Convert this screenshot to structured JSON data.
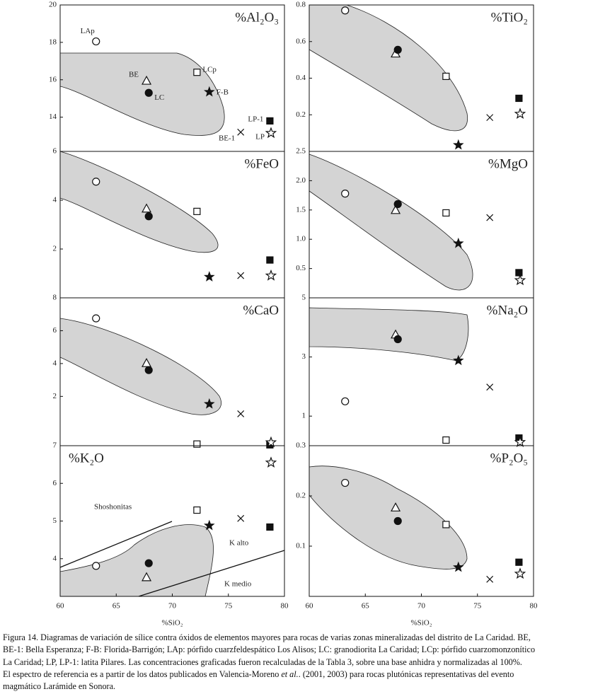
{
  "chart_data": [
    {
      "type": "scatter",
      "label": "%Al₂O₃",
      "label_corner": "upper right",
      "xlim": [
        60,
        80
      ],
      "ylim": [
        12.17,
        20
      ],
      "yticks": [
        14,
        16,
        18,
        20
      ],
      "markers": [
        "open-circle",
        "open-triangle",
        "filled-circle",
        "open-square",
        "filled-star",
        "cross",
        "filled-square",
        "open-star"
      ],
      "point_labels": [
        "LAp",
        "BE",
        "LC",
        "LCp",
        "F-B",
        "BE-1",
        "LP-1",
        "LP"
      ],
      "x": [
        63.2,
        67.7,
        67.9,
        72.2,
        73.3,
        76.1,
        78.7,
        78.8
      ],
      "values": [
        18.05,
        15.95,
        15.3,
        16.4,
        15.35,
        13.2,
        13.8,
        13.15
      ]
    },
    {
      "type": "scatter",
      "label": "%TiO₂",
      "label_corner": "upper right",
      "xlim": [
        60,
        80
      ],
      "ylim": [
        0,
        0.8
      ],
      "yticks": [
        0.2,
        0.4,
        0.6,
        0.8
      ],
      "markers": [
        "open-circle",
        "open-triangle",
        "filled-circle",
        "open-square",
        "filled-star",
        "cross",
        "filled-square",
        "open-star"
      ],
      "x": [
        63.2,
        67.7,
        67.9,
        72.2,
        73.3,
        76.1,
        78.7,
        78.8
      ],
      "values": [
        0.77,
        0.535,
        0.555,
        0.41,
        0.035,
        0.185,
        0.29,
        0.205
      ]
    },
    {
      "type": "scatter",
      "label": "%FeO",
      "label_corner": "upper right",
      "xlim": [
        60,
        80
      ],
      "ylim": [
        0,
        6
      ],
      "yticks": [
        2,
        4,
        6
      ],
      "markers": [
        "open-circle",
        "open-triangle",
        "filled-circle",
        "open-square",
        "filled-star",
        "cross",
        "filled-square",
        "open-star"
      ],
      "x": [
        63.2,
        67.7,
        67.9,
        72.2,
        73.3,
        76.1,
        78.7,
        78.8
      ],
      "values": [
        4.76,
        3.66,
        3.34,
        3.54,
        0.86,
        0.91,
        1.55,
        0.91
      ]
    },
    {
      "type": "scatter",
      "label": "%MgO",
      "label_corner": "upper right",
      "xlim": [
        60,
        80
      ],
      "ylim": [
        0,
        2.5
      ],
      "yticks": [
        0.5,
        {
          "value": 1,
          "label": "1.0"
        },
        1.5,
        {
          "value": 2,
          "label": "2.0"
        },
        2.5
      ],
      "markers": [
        "open-circle",
        "open-triangle",
        "filled-circle",
        "open-square",
        "filled-star",
        "cross",
        "filled-square",
        "open-star"
      ],
      "x": [
        63.2,
        67.7,
        67.9,
        72.2,
        73.3,
        76.1,
        78.7,
        78.8
      ],
      "values": [
        1.78,
        1.5,
        1.6,
        1.45,
        0.93,
        1.37,
        0.43,
        0.3
      ]
    },
    {
      "type": "scatter",
      "label": "%CaO",
      "label_corner": "upper right",
      "xlim": [
        60,
        80
      ],
      "ylim": [
        -1,
        8
      ],
      "yticks": [
        2,
        4,
        6,
        8
      ],
      "markers": [
        "open-circle",
        "open-triangle",
        "filled-circle",
        "open-square",
        "filled-star",
        "cross",
        "filled-square",
        "open-star"
      ],
      "x": [
        63.2,
        67.7,
        67.9,
        72.2,
        73.3,
        76.1,
        78.7,
        78.8
      ],
      "values": [
        6.75,
        4.03,
        3.6,
        -0.9,
        1.54,
        0.94,
        -0.95,
        -0.8
      ]
    },
    {
      "type": "scatter",
      "label": "%Na₂O",
      "label_corner": "upper right",
      "xlim": [
        60,
        80
      ],
      "ylim": [
        0,
        5
      ],
      "yticks": [
        1,
        3,
        5
      ],
      "markers": [
        "open-circle",
        "open-triangle",
        "filled-circle",
        "open-square",
        "filled-star",
        "cross",
        "filled-square",
        "open-star"
      ],
      "x": [
        63.2,
        67.7,
        67.9,
        72.2,
        73.3,
        76.1,
        78.7,
        78.8
      ],
      "values": [
        1.5,
        3.76,
        3.6,
        0.19,
        2.88,
        1.98,
        0.26,
        0.12
      ]
    },
    {
      "type": "scatter",
      "label": "%K₂O",
      "label_corner": "upper left",
      "xlim": [
        60,
        80
      ],
      "ylim": [
        3,
        7
      ],
      "yticks": [
        4,
        5,
        6,
        7
      ],
      "xticks": [
        60,
        65,
        70,
        75,
        80
      ],
      "xlabel": "%SiO₂",
      "annotations": [
        "Shoshonitas",
        "K alto",
        "K medio"
      ],
      "markers": [
        "open-circle",
        "open-triangle",
        "filled-circle",
        "open-square",
        "filled-star",
        "cross",
        "filled-square",
        "open-star"
      ],
      "x": [
        63.2,
        67.7,
        67.9,
        72.2,
        73.3,
        76.1,
        78.7,
        78.8
      ],
      "values": [
        3.81,
        3.51,
        3.88,
        5.29,
        4.88,
        5.07,
        4.84,
        6.55
      ]
    },
    {
      "type": "scatter",
      "label": "%P₂O₅",
      "label_corner": "upper right",
      "xlim": [
        60,
        80
      ],
      "ylim": [
        0,
        0.3
      ],
      "yticks": [
        0.1,
        0.2,
        0.3
      ],
      "xticks": [
        60,
        65,
        70,
        75,
        80
      ],
      "xlabel": "%SiO₂",
      "markers": [
        "open-circle",
        "open-triangle",
        "filled-circle",
        "open-square",
        "filled-star",
        "cross",
        "filled-square",
        "open-star"
      ],
      "x": [
        63.2,
        67.7,
        67.9,
        72.2,
        73.3,
        76.1,
        78.7,
        78.8
      ],
      "values": [
        0.226,
        0.177,
        0.15,
        0.143,
        0.058,
        0.034,
        0.068,
        0.045
      ]
    }
  ],
  "caption": [
    "Figura 14. Diagramas de variación de sílice contra óxidos de elementos mayores para rocas de varias zonas mineralizadas del distrito de La Caridad. BE,",
    "BE-1: Bella Esperanza; F-B: Florida-Barrigón; LAp: pórfido cuarzfeldespático Los Alisos; LC: granodiorita La Caridad; LCp: pórfido cuarzomonzonítico",
    "La Caridad; LP, LP-1: latita Pilares. Las concentraciones graficadas fueron recalculadas de la Tabla 3, sobre una base anhidra y normalizadas al 100%.",
    [
      "El espectro de referencia es a partir de los datos publicados en Valencia-Moreno ",
      "et al.",
      ". (2001, 2003) para rocas plutónicas representativas del evento"
    ],
    "magmático Larámide en Sonora."
  ]
}
